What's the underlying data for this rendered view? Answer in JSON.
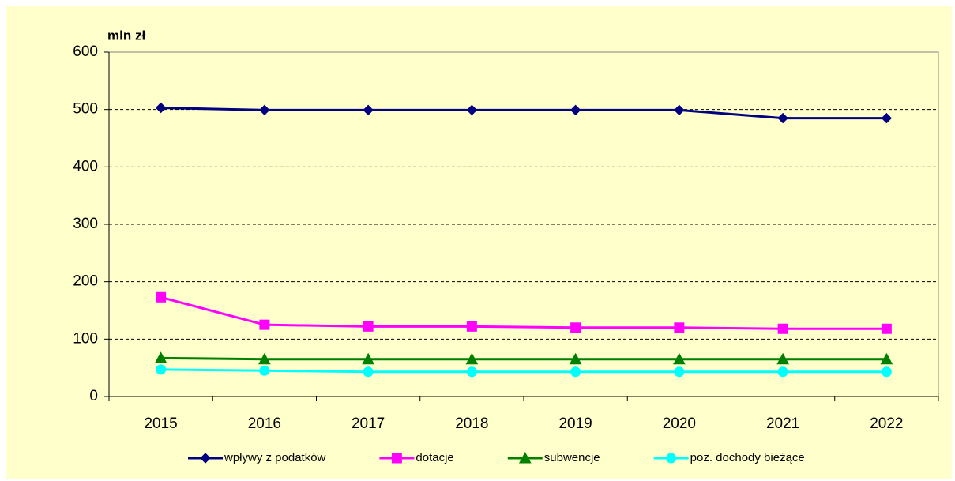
{
  "chart_data": {
    "type": "line",
    "y_label": "mln zł",
    "categories": [
      "2015",
      "2016",
      "2017",
      "2018",
      "2019",
      "2020",
      "2021",
      "2022"
    ],
    "series": [
      {
        "name": "wpływy z podatków",
        "color": "#000080",
        "marker": "diamond",
        "values": [
          503,
          499,
          499,
          499,
          499,
          499,
          485,
          485
        ]
      },
      {
        "name": "dotacje",
        "color": "#ff00ff",
        "marker": "square",
        "values": [
          173,
          125,
          122,
          122,
          120,
          120,
          118,
          118
        ]
      },
      {
        "name": "subwencje",
        "color": "#008000",
        "marker": "triangle",
        "values": [
          67,
          65,
          65,
          65,
          65,
          65,
          65,
          65
        ]
      },
      {
        "name": "poz. dochody bieżące",
        "color": "#00ffff",
        "marker": "circle",
        "values": [
          47,
          45,
          43,
          43,
          43,
          43,
          43,
          43
        ]
      }
    ],
    "ylim": [
      0,
      600
    ],
    "yticks": [
      0,
      100,
      200,
      300,
      400,
      500,
      600
    ],
    "grid": true,
    "legend": "bottom"
  }
}
